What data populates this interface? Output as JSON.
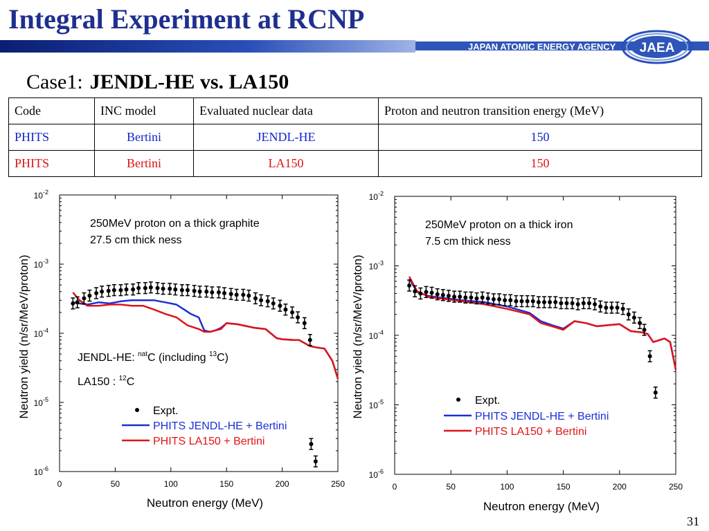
{
  "slide": {
    "title": "Integral Experiment at RCNP",
    "agency": "JAPAN ATOMIC ENERGY AGENCY",
    "logo_text": "JAEA",
    "case_label": "Case1:",
    "case_title": "JENDL-HE vs. LA150",
    "page_number": "31"
  },
  "table": {
    "headers": [
      "Code",
      "INC model",
      "Evaluated nuclear data",
      "Proton and neutron transition energy (MeV)"
    ],
    "rows": [
      {
        "code": "PHITS",
        "inc": "Bertini",
        "data": "JENDL-HE",
        "energy": "150",
        "color": "#1122cc"
      },
      {
        "code": "PHITS",
        "inc": "Bertini",
        "data": "LA150",
        "energy": "150",
        "color": "#e01010"
      }
    ]
  },
  "colors": {
    "title": "#1f2f8f",
    "jendl": "#1a2ed8",
    "la150": "#e01414",
    "expt": "#000000"
  },
  "chart_data": [
    {
      "type": "line",
      "title": "",
      "xlabel": "Neutron energy (MeV)",
      "ylabel": "Neutron yield (n/sr/MeV/proton)",
      "xlim": [
        0,
        250
      ],
      "ylim": [
        1e-06,
        0.01
      ],
      "yscale": "log",
      "xticks": [
        "0",
        "50",
        "100",
        "150",
        "200",
        "250"
      ],
      "yticks": [
        {
          "base": "10",
          "exp": "-6"
        },
        {
          "base": "10",
          "exp": "-5"
        },
        {
          "base": "10",
          "exp": "-4"
        },
        {
          "base": "10",
          "exp": "-3"
        },
        {
          "base": "10",
          "exp": "-2"
        }
      ],
      "annotation_lines": [
        "250MeV proton on a thick graphite",
        "27.5 cm thick ness"
      ],
      "note1": {
        "prefix": "JENDL-HE:  ",
        "sup1": "nat",
        "mid": "C (including ",
        "sup2": "13",
        "suffix": "C)"
      },
      "note2": {
        "prefix": "LA150 :  ",
        "sup1": "12",
        "mid": "C"
      },
      "legend": [
        "Expt.",
        "PHITS JENDL-HE + Bertini",
        "PHITS LA150 + Bertini"
      ],
      "series": [
        {
          "name": "PHITS JENDL-HE + Bertini",
          "color": "#1a2ed8",
          "x": [
            12,
            18,
            25,
            35,
            45,
            55,
            65,
            75,
            85,
            95,
            105,
            112,
            118,
            125,
            130,
            135,
            140,
            145,
            150,
            160,
            175,
            185,
            195,
            200,
            210,
            215,
            225,
            232,
            238,
            245,
            250
          ],
          "y": [
            0.00028,
            0.00027,
            0.00026,
            0.00028,
            0.00027,
            0.00029,
            0.0003,
            0.0003,
            0.0003,
            0.00028,
            0.00026,
            0.00022,
            0.00019,
            0.00017,
            0.00011,
            0.000105,
            0.00011,
            0.00012,
            0.00014,
            0.000135,
            0.00012,
            0.000115,
            8.5e-05,
            8.2e-05,
            8e-05,
            8e-05,
            6.5e-05,
            6.2e-05,
            6e-05,
            4e-05,
            2.2e-05
          ]
        },
        {
          "name": "PHITS LA150 + Bertini",
          "color": "#e01414",
          "x": [
            12,
            18,
            25,
            35,
            45,
            55,
            65,
            75,
            85,
            95,
            105,
            115,
            125,
            130,
            135,
            140,
            145,
            150,
            160,
            175,
            185,
            195,
            200,
            210,
            215,
            225,
            232,
            238,
            245,
            250
          ],
          "y": [
            0.00039,
            0.0003,
            0.00025,
            0.00025,
            0.00026,
            0.00026,
            0.00025,
            0.00025,
            0.00022,
            0.00019,
            0.00017,
            0.00013,
            0.000115,
            0.000105,
            0.000105,
            0.00011,
            0.000115,
            0.00014,
            0.000135,
            0.00012,
            0.000115,
            8.5e-05,
            8.2e-05,
            8e-05,
            8e-05,
            6.5e-05,
            6.2e-05,
            6e-05,
            4e-05,
            2.2e-05
          ]
        }
      ],
      "expt": {
        "x": [
          12,
          16,
          22,
          27,
          33,
          38,
          44,
          49,
          55,
          60,
          66,
          71,
          77,
          82,
          88,
          93,
          99,
          104,
          110,
          115,
          121,
          126,
          132,
          137,
          143,
          148,
          154,
          159,
          165,
          170,
          176,
          181,
          187,
          192,
          198,
          203,
          209,
          214,
          220,
          225,
          226,
          230
        ],
        "y": [
          0.00027,
          0.00028,
          0.00032,
          0.00035,
          0.00038,
          0.0004,
          0.00041,
          0.00042,
          0.00042,
          0.00043,
          0.00043,
          0.00045,
          0.00045,
          0.00046,
          0.00045,
          0.00044,
          0.00044,
          0.00043,
          0.00042,
          0.00042,
          0.00041,
          0.0004,
          0.0004,
          0.00039,
          0.00039,
          0.00038,
          0.00037,
          0.00036,
          0.00036,
          0.00035,
          0.00032,
          0.0003,
          0.00029,
          0.00027,
          0.00025,
          0.00022,
          0.0002,
          0.00017,
          0.00014,
          8e-05,
          2.5e-06,
          1.4e-06
        ]
      }
    },
    {
      "type": "line",
      "title": "",
      "xlabel": "Neutron energy (MeV)",
      "ylabel": "Neutron yield (n/sr/MeV/proton)",
      "xlim": [
        0,
        250
      ],
      "ylim": [
        1e-06,
        0.01
      ],
      "yscale": "log",
      "xticks": [
        "0",
        "50",
        "100",
        "150",
        "200",
        "250"
      ],
      "yticks": [
        {
          "base": "10",
          "exp": "-6"
        },
        {
          "base": "10",
          "exp": "-5"
        },
        {
          "base": "10",
          "exp": "-4"
        },
        {
          "base": "10",
          "exp": "-3"
        },
        {
          "base": "10",
          "exp": "-2"
        }
      ],
      "annotation_lines": [
        "250MeV proton on a thick iron",
        "7.5 cm thick ness"
      ],
      "legend": [
        "Expt.",
        "PHITS JENDL-HE + Bertini",
        "PHITS LA150 + Bertini"
      ],
      "series": [
        {
          "name": "PHITS JENDL-HE + Bertini",
          "color": "#1a2ed8",
          "x": [
            13,
            20,
            30,
            40,
            60,
            80,
            100,
            120,
            130,
            140,
            150,
            160,
            170,
            180,
            190,
            200,
            210,
            220,
            225,
            230,
            240,
            245,
            250
          ],
          "y": [
            0.00065,
            0.00042,
            0.00037,
            0.00035,
            0.00032,
            0.0003,
            0.00026,
            0.00021,
            0.00016,
            0.00014,
            0.000125,
            0.00016,
            0.00015,
            0.000135,
            0.00014,
            0.000145,
            0.000115,
            0.00011,
            0.000105,
            8e-05,
            9e-05,
            8e-05,
            3.2e-05
          ]
        },
        {
          "name": "PHITS LA150 + Bertini",
          "color": "#e01414",
          "x": [
            13,
            20,
            30,
            40,
            60,
            80,
            100,
            120,
            130,
            140,
            150,
            160,
            170,
            180,
            190,
            200,
            210,
            220,
            225,
            230,
            240,
            245,
            250
          ],
          "y": [
            0.0007,
            0.00043,
            0.00036,
            0.00034,
            0.00031,
            0.00028,
            0.00024,
            0.0002,
            0.00015,
            0.000135,
            0.00012,
            0.00016,
            0.00015,
            0.000135,
            0.00014,
            0.000145,
            0.000115,
            0.00011,
            0.000105,
            8e-05,
            9e-05,
            8e-05,
            3.2e-05
          ]
        }
      ],
      "expt": {
        "x": [
          13,
          18,
          23,
          28,
          33,
          38,
          43,
          48,
          53,
          58,
          63,
          68,
          73,
          78,
          83,
          88,
          93,
          98,
          103,
          108,
          113,
          118,
          123,
          128,
          133,
          138,
          143,
          148,
          153,
          158,
          163,
          168,
          173,
          178,
          183,
          188,
          193,
          198,
          203,
          208,
          213,
          218,
          222,
          227,
          232
        ],
        "y": [
          0.00052,
          0.00043,
          0.0004,
          0.00042,
          0.00041,
          0.00039,
          0.00038,
          0.00037,
          0.00036,
          0.00036,
          0.00035,
          0.00035,
          0.00034,
          0.00035,
          0.00034,
          0.00033,
          0.00033,
          0.00032,
          0.00032,
          0.00031,
          0.00031,
          0.00031,
          0.00031,
          0.0003,
          0.0003,
          0.0003,
          0.0003,
          0.00029,
          0.00029,
          0.00029,
          0.00028,
          0.00029,
          0.00029,
          0.00028,
          0.00026,
          0.00025,
          0.00025,
          0.00025,
          0.00024,
          0.0002,
          0.00018,
          0.00015,
          0.00012,
          5e-05,
          1.5e-05
        ]
      }
    }
  ]
}
